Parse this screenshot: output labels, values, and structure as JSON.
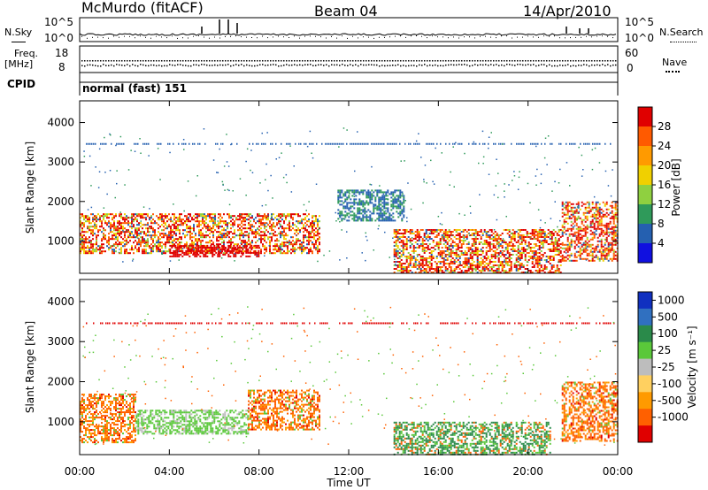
{
  "header": {
    "site": "McMurdo (fitACF)",
    "beam": "Beam 04",
    "date": "14/Apr/2010"
  },
  "top_panels": {
    "nsky": {
      "label_line1": "N.Sky",
      "ticks": [
        "10^5",
        "10^0"
      ]
    },
    "nsearch": {
      "label": "N.Search",
      "ticks": [
        "10^5",
        "10^0"
      ]
    },
    "freq": {
      "label_line1": "Freq.",
      "label_line2": "[MHz]",
      "ticks": [
        "18",
        "8"
      ]
    },
    "nave": {
      "label": "Nave",
      "ticks": [
        "60",
        "0"
      ]
    },
    "cpid": {
      "label": "CPID",
      "program": "normal (fast) 151"
    }
  },
  "chart_data": [
    {
      "type": "heatmap",
      "title": "",
      "ylabel": "Slant Range [km]",
      "xlabel": "",
      "ylim": [
        180,
        4550
      ],
      "yticks": [
        "1000",
        "2000",
        "3000",
        "4000"
      ],
      "colorbar": {
        "label": "Power [dB]",
        "ticks": [
          "28",
          "24",
          "20",
          "16",
          "12",
          "8",
          "4"
        ],
        "colors": [
          "#e00000",
          "#ff5a00",
          "#ff9a00",
          "#f0d000",
          "#8fd040",
          "#2f9a5a",
          "#2560b0",
          "#1010e0"
        ]
      },
      "regions": [
        {
          "t0": 0.0,
          "t1": 10.7,
          "r0": 700,
          "r1": 1700,
          "level": "high"
        },
        {
          "t0": 4.0,
          "t1": 8.0,
          "r0": 600,
          "r1": 900,
          "level": "max"
        },
        {
          "t0": 11.5,
          "t1": 14.5,
          "r0": 1500,
          "r1": 2300,
          "level": "mid"
        },
        {
          "t0": 14.0,
          "t1": 21.5,
          "r0": 200,
          "r1": 1300,
          "level": "high"
        },
        {
          "t0": 21.5,
          "t1": 24.0,
          "r0": 500,
          "r1": 2000,
          "level": "high"
        }
      ]
    },
    {
      "type": "heatmap",
      "title": "",
      "ylabel": "Slant Range [km]",
      "xlabel": "Time UT",
      "ylim": [
        180,
        4550
      ],
      "yticks": [
        "1000",
        "2000",
        "3000",
        "4000"
      ],
      "xticks": [
        "00:00",
        "04:00",
        "08:00",
        "12:00",
        "16:00",
        "20:00",
        "00:00"
      ],
      "colorbar": {
        "label": "Velocity [m s⁻¹]",
        "ticks": [
          "1000",
          "500",
          "100",
          "25",
          "-25",
          "-100",
          "-500",
          "-1000"
        ],
        "colors": [
          "#1030c0",
          "#3070c0",
          "#2a8a4a",
          "#5ac83a",
          "#bdbdbd",
          "#ffd060",
          "#ff9a00",
          "#ff6000",
          "#e00000"
        ]
      },
      "regions": [
        {
          "t0": 0.0,
          "t1": 2.5,
          "r0": 500,
          "r1": 1700,
          "level": "orange"
        },
        {
          "t0": 2.5,
          "t1": 7.5,
          "r0": 700,
          "r1": 1300,
          "level": "green"
        },
        {
          "t0": 7.5,
          "t1": 10.7,
          "r0": 800,
          "r1": 1800,
          "level": "orange"
        },
        {
          "t0": 14.0,
          "t1": 21.0,
          "r0": 200,
          "r1": 1000,
          "level": "darkgreen"
        },
        {
          "t0": 21.5,
          "t1": 24.0,
          "r0": 500,
          "r1": 2000,
          "level": "orange"
        }
      ]
    }
  ]
}
